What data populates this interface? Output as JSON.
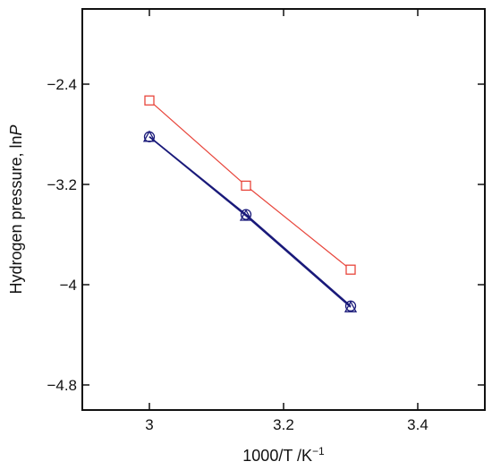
{
  "chart_data": {
    "type": "scatter",
    "title": "",
    "xlabel": "1000/T  /K",
    "xlabel_superscript": "−1",
    "ylabel": "Hydrogen pressure, ln",
    "ylabel_italic": "P",
    "xlim": [
      2.9,
      3.5
    ],
    "ylim": [
      -5.0,
      -1.8
    ],
    "x_ticks": [
      3.0,
      3.2,
      3.4
    ],
    "x_tick_labels": [
      "3",
      "3.2",
      "3.4"
    ],
    "y_ticks": [
      -2.4,
      -3.2,
      -4.0,
      -4.8
    ],
    "y_tick_labels": [
      "−2.4",
      "−3.2",
      "−4",
      "−4.8"
    ],
    "grid": false,
    "series": [
      {
        "marker": "square",
        "color": "#e8463c",
        "line": true,
        "x": [
          3.0,
          3.144,
          3.3
        ],
        "y": [
          -2.53,
          -3.21,
          -3.88
        ]
      },
      {
        "marker": "circle",
        "color": "#1a1a7a",
        "line": true,
        "x": [
          3.0,
          3.144,
          3.3
        ],
        "y": [
          -2.82,
          -3.44,
          -4.17
        ]
      },
      {
        "marker": "triangle",
        "color": "#1a1a7a",
        "line": true,
        "x": [
          3.0,
          3.144,
          3.3
        ],
        "y": [
          -2.82,
          -3.45,
          -4.18
        ]
      }
    ]
  }
}
